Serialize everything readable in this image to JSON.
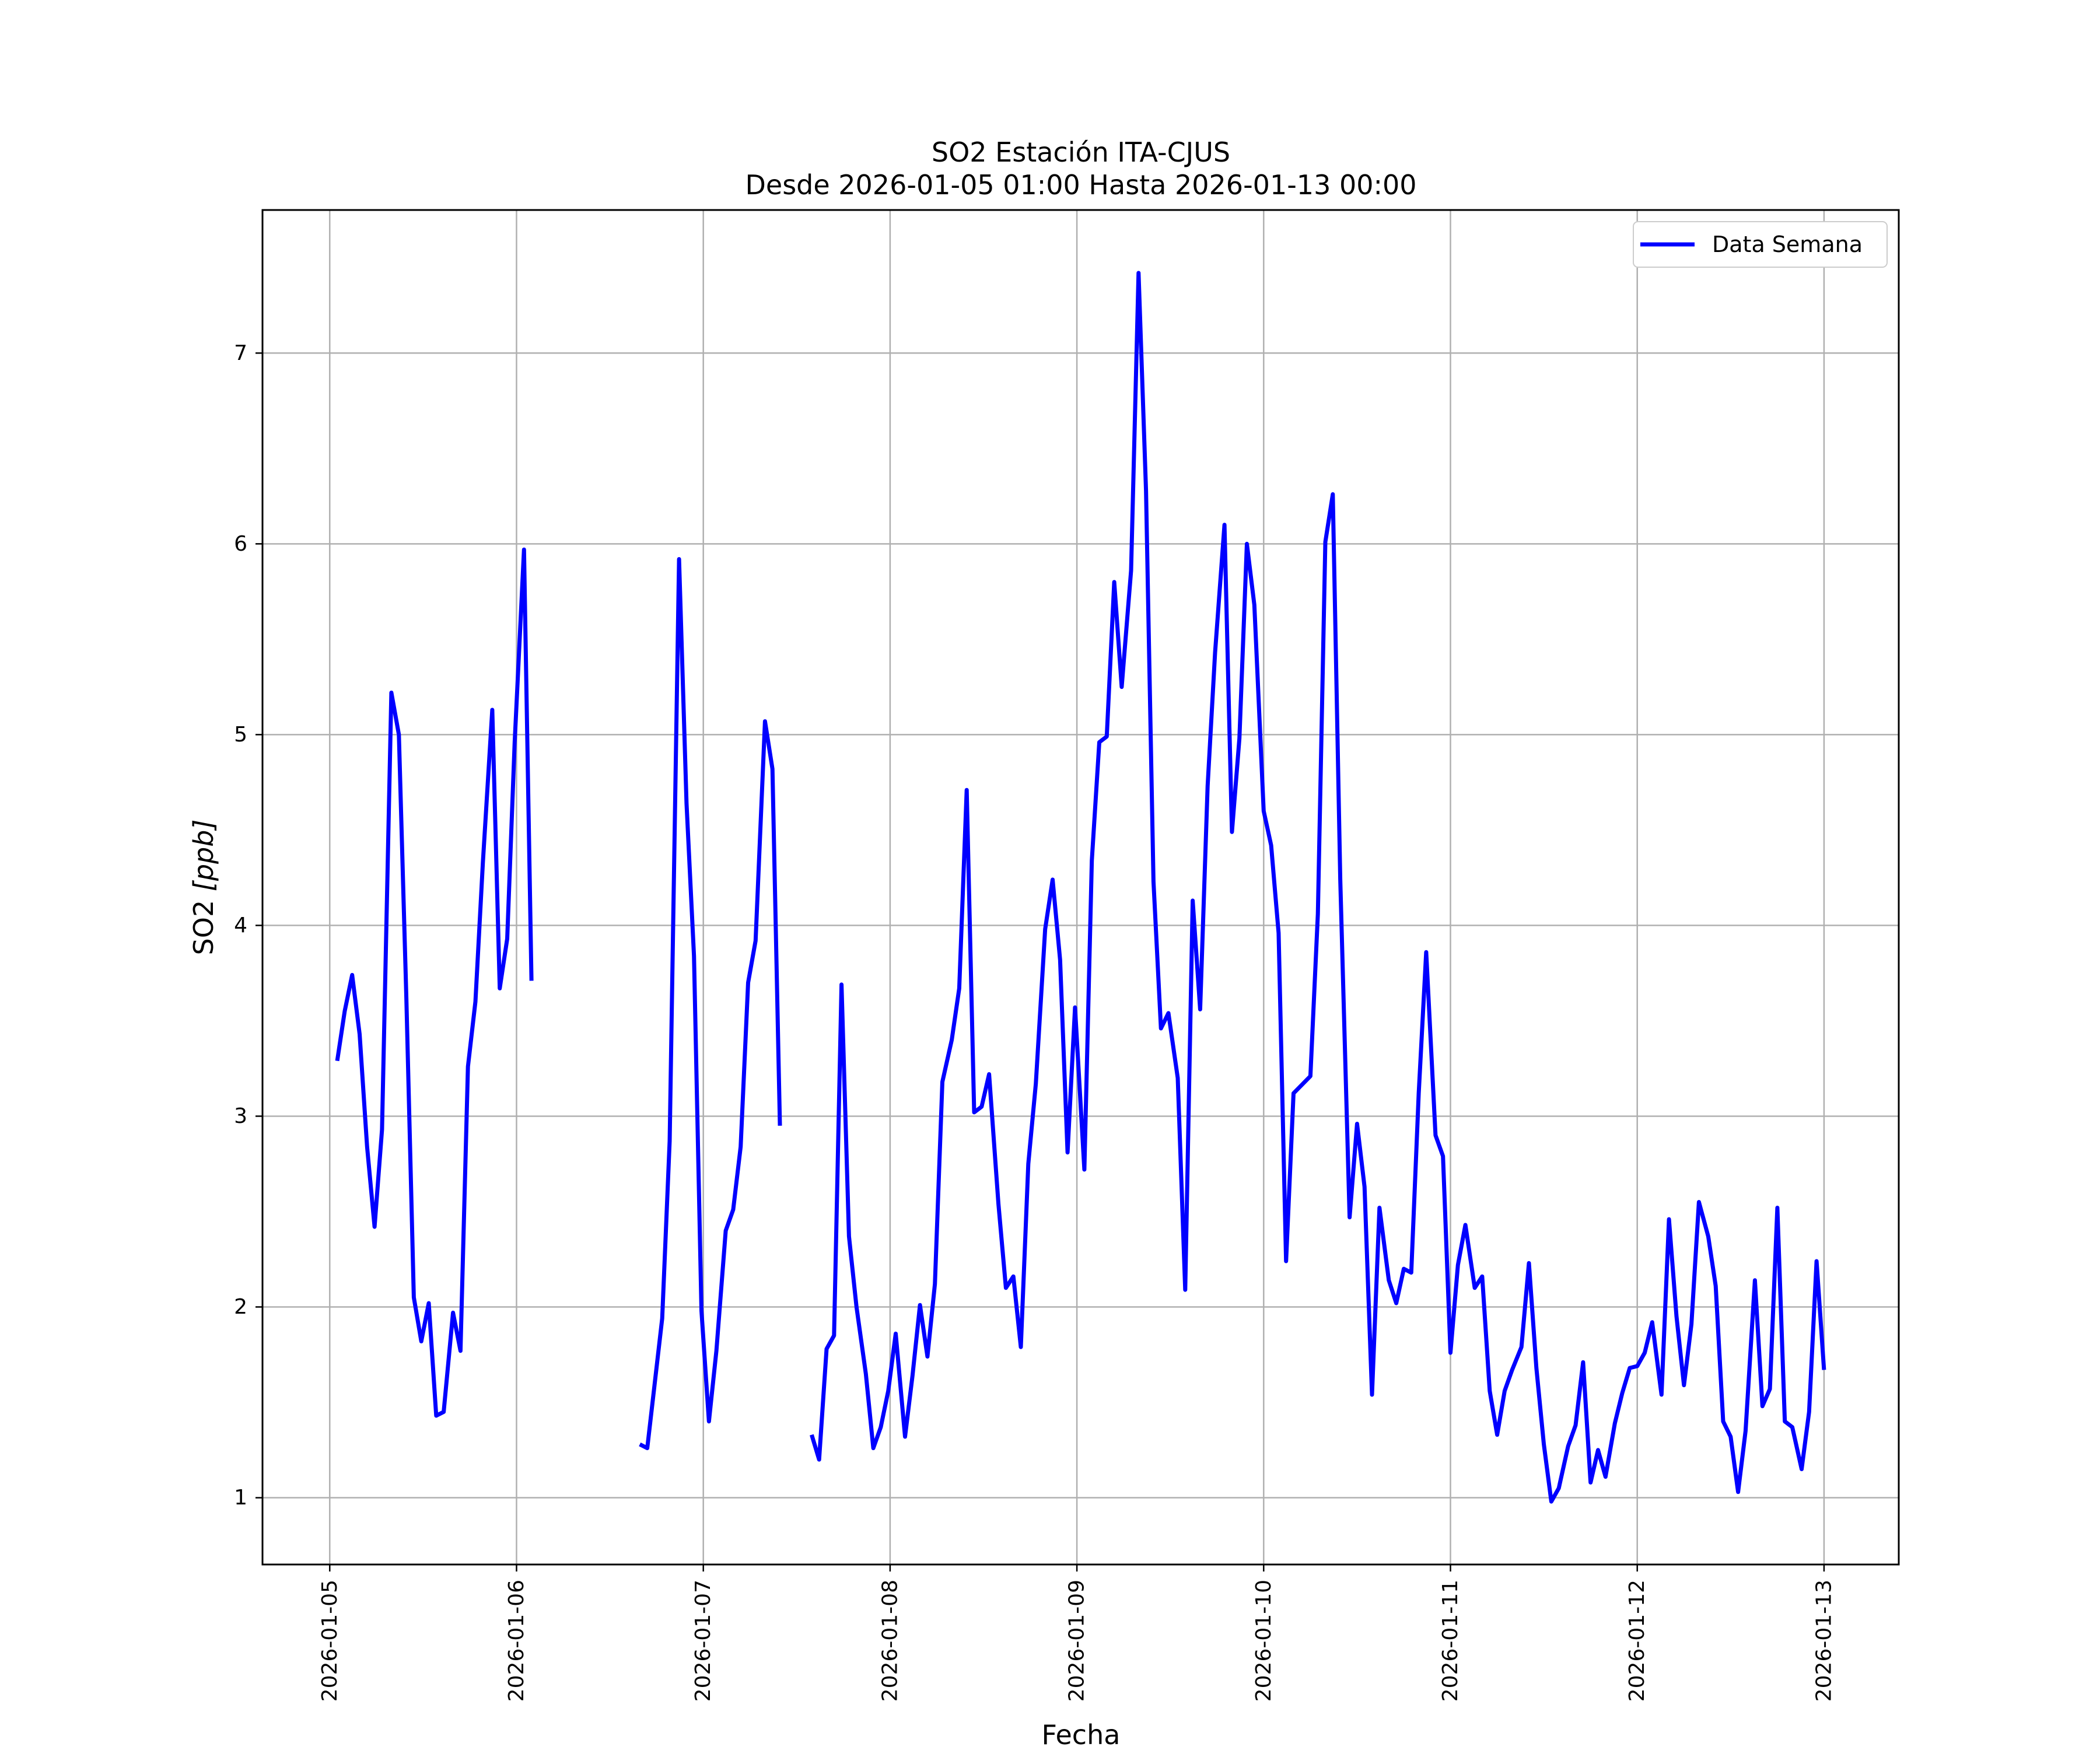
{
  "chart_data": {
    "type": "line",
    "title": "SO2 Estación ITA-CJUS",
    "subtitle": "Desde 2026-01-05 01:00 Hasta 2026-01-13 00:00",
    "xlabel": "Fecha",
    "ylabel_main": "SO2 ",
    "ylabel_unit": "[ppb]",
    "x_ticks": [
      "2026-01-05",
      "2026-01-06",
      "2026-01-07",
      "2026-01-08",
      "2026-01-09",
      "2026-01-10",
      "2026-01-11",
      "2026-01-12",
      "2026-01-13"
    ],
    "y_ticks": [
      "1",
      "2",
      "3",
      "4",
      "5",
      "6",
      "7"
    ],
    "xlim_days": [
      -0.36,
      8.4
    ],
    "ylim": [
      0.65,
      7.75
    ],
    "grid": true,
    "legend_position": "top-right",
    "color": "#0000ff",
    "series": [
      {
        "name": "Data Semana",
        "segments": [
          [
            [
              0.04,
              3.29
            ],
            [
              0.08,
              3.55
            ],
            [
              0.12,
              3.74
            ],
            [
              0.16,
              3.43
            ],
            [
              0.2,
              2.84
            ],
            [
              0.24,
              2.42
            ],
            [
              0.28,
              2.93
            ],
            [
              0.33,
              5.22
            ],
            [
              0.37,
              5.0
            ],
            [
              0.41,
              3.62
            ],
            [
              0.45,
              2.05
            ],
            [
              0.49,
              1.82
            ],
            [
              0.53,
              2.02
            ],
            [
              0.57,
              1.43
            ],
            [
              0.61,
              1.45
            ],
            [
              0.66,
              1.97
            ],
            [
              0.7,
              1.77
            ],
            [
              0.74,
              3.26
            ],
            [
              0.78,
              3.6
            ],
            [
              0.82,
              4.33
            ],
            [
              0.87,
              5.13
            ],
            [
              0.91,
              3.67
            ],
            [
              0.95,
              3.93
            ],
            [
              0.99,
              4.96
            ],
            [
              1.04,
              5.97
            ],
            [
              1.08,
              3.71
            ]
          ],
          [
            [
              1.66,
              1.28
            ],
            [
              1.7,
              1.26
            ],
            [
              1.74,
              1.6
            ],
            [
              1.78,
              1.94
            ],
            [
              1.82,
              2.87
            ],
            [
              1.87,
              5.92
            ],
            [
              1.91,
              4.64
            ],
            [
              1.95,
              3.84
            ],
            [
              1.99,
              1.98
            ],
            [
              2.03,
              1.4
            ],
            [
              2.07,
              1.77
            ],
            [
              2.12,
              2.4
            ],
            [
              2.16,
              2.51
            ],
            [
              2.2,
              2.84
            ],
            [
              2.24,
              3.7
            ],
            [
              2.28,
              3.92
            ],
            [
              2.33,
              5.07
            ],
            [
              2.37,
              4.82
            ],
            [
              2.41,
              2.95
            ]
          ],
          [
            [
              2.58,
              1.33
            ],
            [
              2.62,
              1.2
            ],
            [
              2.66,
              1.78
            ],
            [
              2.7,
              1.85
            ],
            [
              2.74,
              3.69
            ],
            [
              2.78,
              2.37
            ],
            [
              2.82,
              2.0
            ],
            [
              2.87,
              1.65
            ],
            [
              2.91,
              1.26
            ],
            [
              2.95,
              1.37
            ],
            [
              2.99,
              1.56
            ],
            [
              3.03,
              1.86
            ],
            [
              3.08,
              1.32
            ],
            [
              3.12,
              1.64
            ],
            [
              3.16,
              2.01
            ],
            [
              3.2,
              1.74
            ],
            [
              3.24,
              2.12
            ],
            [
              3.28,
              3.18
            ],
            [
              3.33,
              3.4
            ],
            [
              3.37,
              3.67
            ],
            [
              3.41,
              4.71
            ],
            [
              3.45,
              3.02
            ],
            [
              3.49,
              3.05
            ],
            [
              3.53,
              3.22
            ],
            [
              3.58,
              2.54
            ],
            [
              3.62,
              2.1
            ],
            [
              3.66,
              2.16
            ],
            [
              3.7,
              1.79
            ],
            [
              3.74,
              2.75
            ],
            [
              3.78,
              3.17
            ],
            [
              3.83,
              3.98
            ],
            [
              3.87,
              4.24
            ],
            [
              3.91,
              3.82
            ],
            [
              3.95,
              2.81
            ],
            [
              3.99,
              3.57
            ],
            [
              4.04,
              2.72
            ],
            [
              4.08,
              4.34
            ],
            [
              4.12,
              4.96
            ],
            [
              4.16,
              4.99
            ],
            [
              4.2,
              5.8
            ],
            [
              4.24,
              5.25
            ],
            [
              4.29,
              5.86
            ],
            [
              4.33,
              7.42
            ],
            [
              4.37,
              6.28
            ],
            [
              4.41,
              4.23
            ],
            [
              4.45,
              3.46
            ],
            [
              4.49,
              3.54
            ],
            [
              4.54,
              3.2
            ],
            [
              4.58,
              2.09
            ],
            [
              4.62,
              4.13
            ],
            [
              4.66,
              3.56
            ],
            [
              4.7,
              4.73
            ],
            [
              4.74,
              5.43
            ],
            [
              4.79,
              6.1
            ],
            [
              4.83,
              4.49
            ],
            [
              4.87,
              4.98
            ],
            [
              4.91,
              6.0
            ],
            [
              4.95,
              5.68
            ],
            [
              5.0,
              4.6
            ],
            [
              5.04,
              4.42
            ],
            [
              5.08,
              3.96
            ],
            [
              5.12,
              2.24
            ],
            [
              5.16,
              3.12
            ],
            [
              5.21,
              3.17
            ],
            [
              5.25,
              3.21
            ],
            [
              5.29,
              4.06
            ],
            [
              5.33,
              6.01
            ],
            [
              5.37,
              6.26
            ],
            [
              5.41,
              4.24
            ],
            [
              5.46,
              2.47
            ],
            [
              5.5,
              2.96
            ],
            [
              5.54,
              2.63
            ],
            [
              5.58,
              1.54
            ],
            [
              5.62,
              2.52
            ],
            [
              5.67,
              2.14
            ],
            [
              5.71,
              2.02
            ],
            [
              5.75,
              2.2
            ],
            [
              5.79,
              2.18
            ],
            [
              5.83,
              3.12
            ],
            [
              5.87,
              3.86
            ],
            [
              5.92,
              2.9
            ],
            [
              5.96,
              2.79
            ],
            [
              6.0,
              1.76
            ],
            [
              6.04,
              2.22
            ],
            [
              6.08,
              2.43
            ],
            [
              6.13,
              2.1
            ],
            [
              6.17,
              2.16
            ],
            [
              6.21,
              1.56
            ],
            [
              6.25,
              1.33
            ],
            [
              6.29,
              1.56
            ],
            [
              6.33,
              1.67
            ],
            [
              6.38,
              1.79
            ],
            [
              6.42,
              2.23
            ],
            [
              6.46,
              1.68
            ],
            [
              6.5,
              1.28
            ],
            [
              6.54,
              0.98
            ],
            [
              6.58,
              1.05
            ],
            [
              6.63,
              1.27
            ],
            [
              6.67,
              1.38
            ],
            [
              6.71,
              1.71
            ],
            [
              6.75,
              1.08
            ],
            [
              6.79,
              1.25
            ],
            [
              6.83,
              1.11
            ],
            [
              6.88,
              1.39
            ],
            [
              6.92,
              1.55
            ],
            [
              6.96,
              1.68
            ],
            [
              7.0,
              1.69
            ],
            [
              7.04,
              1.76
            ],
            [
              7.08,
              1.92
            ],
            [
              7.13,
              1.54
            ],
            [
              7.17,
              2.46
            ],
            [
              7.21,
              1.95
            ],
            [
              7.25,
              1.59
            ],
            [
              7.29,
              1.91
            ],
            [
              7.33,
              2.55
            ],
            [
              7.38,
              2.37
            ],
            [
              7.42,
              2.11
            ],
            [
              7.46,
              1.4
            ],
            [
              7.5,
              1.32
            ],
            [
              7.54,
              1.03
            ],
            [
              7.58,
              1.35
            ],
            [
              7.63,
              2.14
            ],
            [
              7.67,
              1.48
            ],
            [
              7.71,
              1.57
            ],
            [
              7.75,
              2.52
            ],
            [
              7.79,
              1.4
            ],
            [
              7.83,
              1.37
            ],
            [
              7.88,
              1.15
            ],
            [
              7.92,
              1.45
            ],
            [
              7.96,
              2.24
            ],
            [
              8.0,
              1.67
            ]
          ]
        ]
      }
    ]
  }
}
